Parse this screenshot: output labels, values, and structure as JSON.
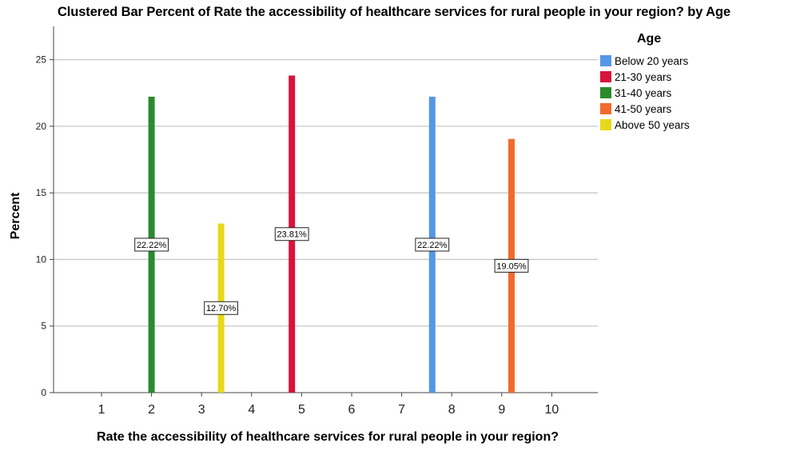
{
  "chart_data": {
    "type": "bar",
    "title": "Clustered Bar Percent of Rate the accessibility of healthcare services for rural people in your region? by Age",
    "xlabel": "Rate the accessibility of healthcare services for rural people in your region?",
    "ylabel": "Percent",
    "categories": [
      "1",
      "2",
      "3",
      "4",
      "5",
      "6",
      "7",
      "8",
      "9",
      "10"
    ],
    "ylim": [
      0,
      27.5
    ],
    "yticks": [
      0,
      5,
      10,
      15,
      20,
      25
    ],
    "grid": true,
    "legend_title": "Age",
    "legend_position": "right",
    "series": [
      {
        "name": "Below 20 years",
        "color": "#5596e6",
        "values": [
          null,
          null,
          null,
          null,
          null,
          null,
          null,
          22.22,
          null,
          null
        ],
        "labels": [
          null,
          null,
          null,
          null,
          null,
          null,
          null,
          "22.22%",
          null,
          null
        ]
      },
      {
        "name": "21-30 years",
        "color": "#d7133b",
        "values": [
          null,
          null,
          null,
          null,
          23.81,
          null,
          null,
          null,
          null,
          null
        ],
        "labels": [
          null,
          null,
          null,
          null,
          "23.81%",
          null,
          null,
          null,
          null,
          null
        ]
      },
      {
        "name": "31-40 years",
        "color": "#2b8a2e",
        "values": [
          null,
          22.22,
          null,
          null,
          null,
          null,
          null,
          null,
          null,
          null
        ],
        "labels": [
          null,
          "22.22%",
          null,
          null,
          null,
          null,
          null,
          null,
          null,
          null
        ]
      },
      {
        "name": "41-50 years",
        "color": "#f26b2e",
        "values": [
          null,
          null,
          null,
          null,
          null,
          null,
          null,
          null,
          19.05,
          null
        ],
        "labels": [
          null,
          null,
          null,
          null,
          null,
          null,
          null,
          null,
          "19.05%",
          null
        ]
      },
      {
        "name": "Above 50 years",
        "color": "#e6d91c",
        "values": [
          null,
          null,
          12.7,
          null,
          null,
          null,
          null,
          null,
          null,
          null
        ],
        "labels": [
          null,
          null,
          "12.70%",
          null,
          null,
          null,
          null,
          null,
          null,
          null
        ]
      }
    ]
  }
}
